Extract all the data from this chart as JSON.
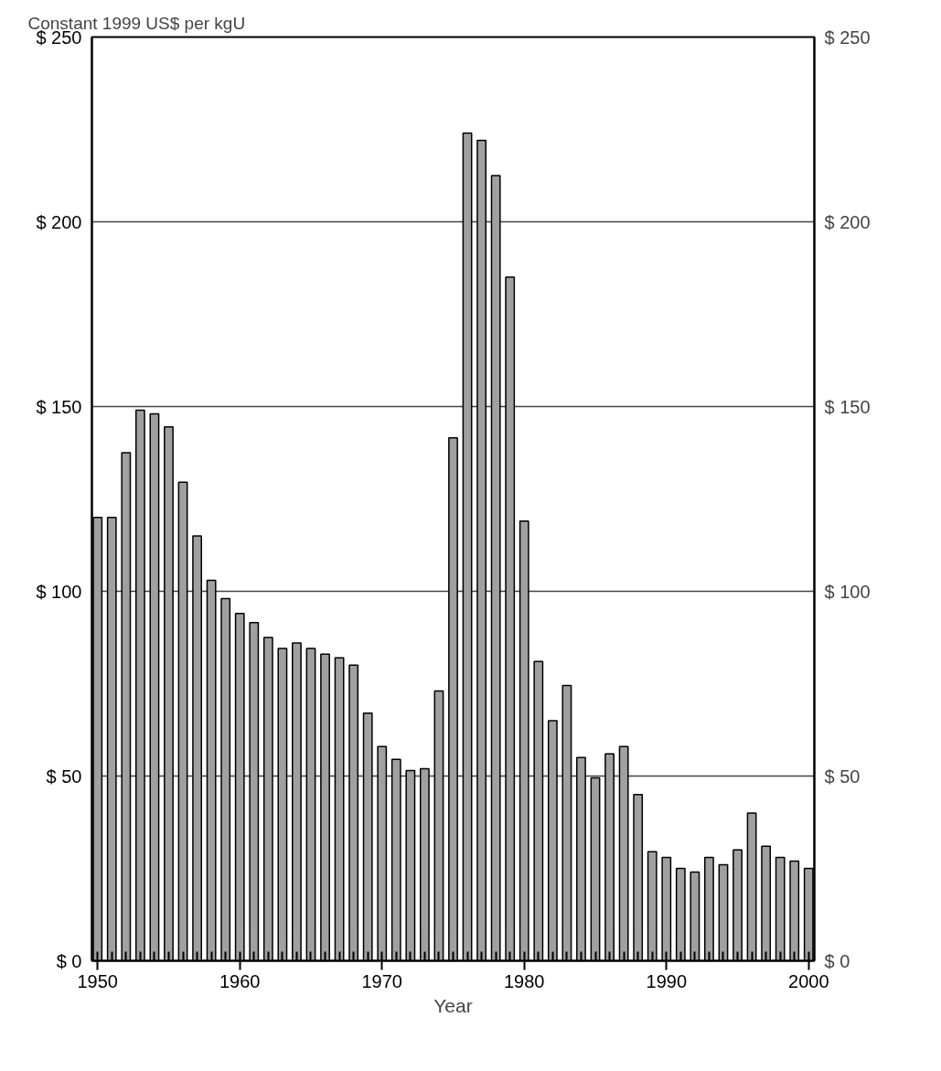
{
  "chart_data": {
    "type": "bar",
    "ylabel": "Constant 1999 US$ per kgU",
    "xlabel": "Year",
    "x": [
      1950,
      1951,
      1952,
      1953,
      1954,
      1955,
      1956,
      1957,
      1958,
      1959,
      1960,
      1961,
      1962,
      1963,
      1964,
      1965,
      1966,
      1967,
      1968,
      1969,
      1970,
      1971,
      1972,
      1973,
      1974,
      1975,
      1976,
      1977,
      1978,
      1979,
      1980,
      1981,
      1982,
      1983,
      1984,
      1985,
      1986,
      1987,
      1988,
      1989,
      1990,
      1991,
      1992,
      1993,
      1994,
      1995,
      1996,
      1997,
      1998,
      1999,
      2000
    ],
    "values": [
      120,
      120,
      137.5,
      149,
      148,
      144.5,
      129.5,
      115,
      103,
      98,
      94,
      91.5,
      87.5,
      84.5,
      86,
      84.5,
      83,
      82,
      80,
      67,
      58,
      54.5,
      51.5,
      52,
      73,
      141.5,
      224,
      222,
      212.5,
      185,
      119,
      81,
      65,
      74.5,
      55,
      49.5,
      56,
      58,
      45,
      29.5,
      28,
      25,
      24,
      28,
      26,
      30,
      40,
      31,
      28,
      27,
      25
    ],
    "color": "#a0a0a0",
    "xlim": [
      1949.6,
      2000.4
    ],
    "xticks": [
      1950,
      1960,
      1970,
      1980,
      1990,
      2000
    ],
    "ylim": [
      0,
      250
    ],
    "yticks": [
      {
        "value": 0,
        "label": "$ 0"
      },
      {
        "value": 50,
        "label": "$ 50"
      },
      {
        "value": 100,
        "label": "$ 100"
      },
      {
        "value": 150,
        "label": "$ 150"
      },
      {
        "value": 200,
        "label": "$ 200"
      },
      {
        "value": 250,
        "label": "$ 250"
      }
    ],
    "y2lim": [
      0,
      250
    ],
    "y2ticks": [
      {
        "value": 0,
        "label": "$ 0"
      },
      {
        "value": 50,
        "label": "$ 50"
      },
      {
        "value": 100,
        "label": "$ 100"
      },
      {
        "value": 150,
        "label": "$ 150"
      },
      {
        "value": 200,
        "label": "$ 200"
      },
      {
        "value": 250,
        "label": "$ 250"
      }
    ],
    "grid": "y"
  }
}
